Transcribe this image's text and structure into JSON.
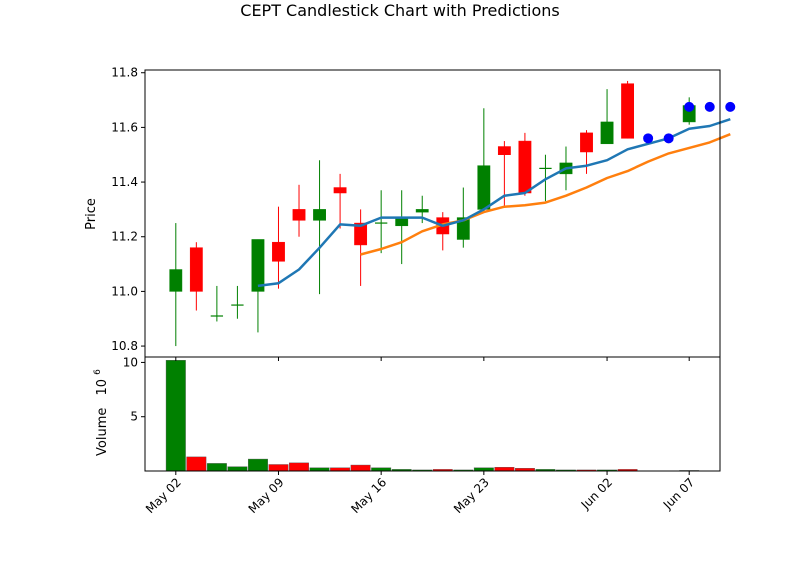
{
  "chart_data": {
    "type": "candlestick",
    "title": "CEPT Candlestick Chart with Predictions",
    "price_panel": {
      "ylabel": "Price",
      "ylim": [
        10.76,
        11.81
      ],
      "yticks": [
        "10.8",
        "11.0",
        "11.2",
        "11.4",
        "11.6",
        "11.8"
      ],
      "ytick_values": [
        10.8,
        11.0,
        11.2,
        11.4,
        11.6,
        11.8
      ],
      "grid": false
    },
    "volume_panel": {
      "ylabel": "Volume",
      "multiplier": "10",
      "multiplier_exp": "6",
      "ylim": [
        0,
        10.5
      ],
      "yticks": [
        "5",
        "10"
      ],
      "ytick_values": [
        5,
        10
      ]
    },
    "xlim": [
      -1.5,
      26.5
    ],
    "xticks": [
      {
        "x": 0,
        "label": "May 02"
      },
      {
        "x": 5,
        "label": "May 09"
      },
      {
        "x": 10,
        "label": "May 16"
      },
      {
        "x": 15,
        "label": "May 23"
      },
      {
        "x": 21,
        "label": "Jun 02"
      },
      {
        "x": 25,
        "label": "Jun 07"
      }
    ],
    "colors": {
      "up": "#008000",
      "down": "#ff0000",
      "ma_blue": "#1f77b4",
      "ma_orange": "#ff7f0e",
      "prediction": "#0000ff"
    },
    "candles": [
      {
        "x": 0,
        "open": 11.0,
        "high": 11.25,
        "low": 10.8,
        "close": 11.08,
        "volume": 10.2
      },
      {
        "x": 1,
        "open": 11.16,
        "high": 11.18,
        "low": 10.93,
        "close": 11.0,
        "volume": 1.3
      },
      {
        "x": 2,
        "open": 10.91,
        "high": 11.02,
        "low": 10.89,
        "close": 10.91,
        "volume": 0.7
      },
      {
        "x": 3,
        "open": 10.95,
        "high": 11.02,
        "low": 10.9,
        "close": 10.95,
        "volume": 0.4
      },
      {
        "x": 4,
        "open": 11.0,
        "high": 11.19,
        "low": 10.85,
        "close": 11.19,
        "volume": 1.1
      },
      {
        "x": 5,
        "open": 11.18,
        "high": 11.31,
        "low": 11.01,
        "close": 11.11,
        "volume": 0.6
      },
      {
        "x": 6,
        "open": 11.3,
        "high": 11.39,
        "low": 11.2,
        "close": 11.26,
        "volume": 0.75
      },
      {
        "x": 7,
        "open": 11.26,
        "high": 11.48,
        "low": 10.99,
        "close": 11.3,
        "volume": 0.3
      },
      {
        "x": 8,
        "open": 11.38,
        "high": 11.43,
        "low": 11.23,
        "close": 11.36,
        "volume": 0.3
      },
      {
        "x": 9,
        "open": 11.25,
        "high": 11.3,
        "low": 11.02,
        "close": 11.17,
        "volume": 0.55
      },
      {
        "x": 10,
        "open": 11.25,
        "high": 11.37,
        "low": 11.14,
        "close": 11.25,
        "volume": 0.3
      },
      {
        "x": 11,
        "open": 11.24,
        "high": 11.37,
        "low": 11.1,
        "close": 11.27,
        "volume": 0.15
      },
      {
        "x": 12,
        "open": 11.29,
        "high": 11.35,
        "low": 11.25,
        "close": 11.3,
        "volume": 0.1
      },
      {
        "x": 13,
        "open": 11.27,
        "high": 11.29,
        "low": 11.15,
        "close": 11.21,
        "volume": 0.15
      },
      {
        "x": 14,
        "open": 11.19,
        "high": 11.38,
        "low": 11.16,
        "close": 11.27,
        "volume": 0.1
      },
      {
        "x": 15,
        "open": 11.3,
        "high": 11.67,
        "low": 11.29,
        "close": 11.46,
        "volume": 0.3
      },
      {
        "x": 16,
        "open": 11.53,
        "high": 11.55,
        "low": 11.31,
        "close": 11.5,
        "volume": 0.35
      },
      {
        "x": 17,
        "open": 11.55,
        "high": 11.58,
        "low": 11.35,
        "close": 11.36,
        "volume": 0.25
      },
      {
        "x": 18,
        "open": 11.45,
        "high": 11.5,
        "low": 11.33,
        "close": 11.45,
        "volume": 0.15
      },
      {
        "x": 19,
        "open": 11.43,
        "high": 11.53,
        "low": 11.37,
        "close": 11.47,
        "volume": 0.1
      },
      {
        "x": 20,
        "open": 11.58,
        "high": 11.59,
        "low": 11.43,
        "close": 11.51,
        "volume": 0.1
      },
      {
        "x": 21,
        "open": 11.54,
        "high": 11.74,
        "low": 11.54,
        "close": 11.62,
        "volume": 0.1
      },
      {
        "x": 22,
        "open": 11.76,
        "high": 11.77,
        "low": 11.56,
        "close": 11.56,
        "volume": 0.15
      },
      {
        "x": 25,
        "open": 11.62,
        "high": 11.71,
        "low": 11.61,
        "close": 11.68,
        "volume": 0.05
      }
    ],
    "ma_blue": {
      "x": [
        4,
        5,
        6,
        7,
        8,
        9,
        10,
        11,
        12,
        13,
        14,
        15,
        16,
        17,
        18,
        19,
        20,
        21,
        22,
        23,
        24,
        25,
        26,
        27
      ],
      "values": [
        11.02,
        11.03,
        11.08,
        11.16,
        11.245,
        11.24,
        11.27,
        11.27,
        11.27,
        11.24,
        11.26,
        11.3,
        11.35,
        11.36,
        11.41,
        11.45,
        11.46,
        11.48,
        11.52,
        11.54,
        11.56,
        11.595,
        11.605,
        11.63
      ]
    },
    "ma_orange": {
      "x": [
        9,
        10,
        11,
        12,
        13,
        14,
        15,
        16,
        17,
        18,
        19,
        20,
        21,
        22,
        23,
        24,
        25,
        26,
        27
      ],
      "values": [
        11.135,
        11.155,
        11.18,
        11.22,
        11.245,
        11.26,
        11.29,
        11.31,
        11.315,
        11.325,
        11.35,
        11.38,
        11.415,
        11.44,
        11.475,
        11.505,
        11.525,
        11.545,
        11.575
      ]
    },
    "predictions": [
      {
        "x": 23,
        "y": 11.56
      },
      {
        "x": 24,
        "y": 11.56
      },
      {
        "x": 25,
        "y": 11.675
      },
      {
        "x": 26,
        "y": 11.675
      },
      {
        "x": 27,
        "y": 11.675
      }
    ]
  }
}
